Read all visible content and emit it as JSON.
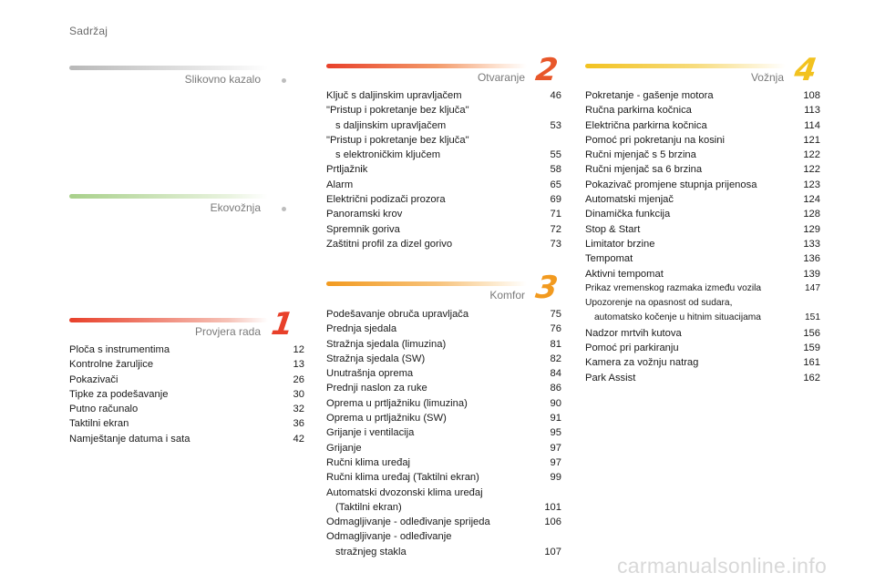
{
  "page_title": "Sadržaj",
  "sections": {
    "slikovno": {
      "label": "Slikovno kazalo"
    },
    "ekovoznja": {
      "label": "Ekovožnja"
    },
    "provjera": {
      "label": "Provjera rada",
      "number": "1",
      "color": "#e8402a"
    },
    "otvaranje": {
      "label": "Otvaranje",
      "number": "2",
      "color": "#e8572a"
    },
    "komfor": {
      "label": "Komfor",
      "number": "3",
      "color": "#f29a1f"
    },
    "voznja": {
      "label": "Vožnja",
      "number": "4",
      "color": "#f2c21f"
    }
  },
  "provjera_items": [
    {
      "title": "Ploča s instrumentima",
      "page": "12"
    },
    {
      "title": "Kontrolne žaruljice",
      "page": "13"
    },
    {
      "title": "Pokazivači",
      "page": "26"
    },
    {
      "title": "Tipke za podešavanje",
      "page": "30"
    },
    {
      "title": "Putno računalo",
      "page": "32"
    },
    {
      "title": "Taktilni ekran",
      "page": "36"
    },
    {
      "title": "Namještanje datuma i sata",
      "page": "42"
    }
  ],
  "otvaranje_items": [
    {
      "title": "Ključ s daljinskim upravljačem",
      "page": "46"
    },
    {
      "title": "\"Pristup i pokretanje bez ključa\"",
      "title2": "s daljinskim upravljačem",
      "page": "53"
    },
    {
      "title": "\"Pristup i pokretanje bez ključa\"",
      "title2": "s elektroničkim ključem",
      "page": "55"
    },
    {
      "title": "Prtljažnik",
      "page": "58"
    },
    {
      "title": "Alarm",
      "page": "65"
    },
    {
      "title": "Električni podizači prozora",
      "page": "69"
    },
    {
      "title": "Panoramski krov",
      "page": "71"
    },
    {
      "title": "Spremnik goriva",
      "page": "72"
    },
    {
      "title": "Zaštitni profil za dizel gorivo",
      "page": "73"
    }
  ],
  "komfor_items": [
    {
      "title": "Podešavanje obruča upravljača",
      "page": "75"
    },
    {
      "title": "Prednja sjedala",
      "page": "76"
    },
    {
      "title": "Stražnja sjedala (limuzina)",
      "page": "81"
    },
    {
      "title": "Stražnja sjedala (SW)",
      "page": "82"
    },
    {
      "title": "Unutrašnja oprema",
      "page": "84"
    },
    {
      "title": "Prednji naslon za ruke",
      "page": "86"
    },
    {
      "title": "Oprema u prtljažniku (limuzina)",
      "page": "90"
    },
    {
      "title": "Oprema u prtljažniku (SW)",
      "page": "91"
    },
    {
      "title": "Grijanje i ventilacija",
      "page": "95"
    },
    {
      "title": "Grijanje",
      "page": "97"
    },
    {
      "title": "Ručni klima uređaj",
      "page": "97"
    },
    {
      "title": "Ručni klima uređaj (Taktilni ekran)",
      "page": "99"
    },
    {
      "title": "Automatski dvozonski klima uređaj",
      "title2": "(Taktilni ekran)",
      "page": "101"
    },
    {
      "title": "Odmagljivanje - odleđivanje sprijeda",
      "page": "106"
    },
    {
      "title": "Odmagljivanje - odleđivanje",
      "title2": "stražnjeg stakla",
      "page": "107"
    }
  ],
  "voznja_items": [
    {
      "title": "Pokretanje - gašenje motora",
      "page": "108"
    },
    {
      "title": "Ručna parkirna kočnica",
      "page": "113"
    },
    {
      "title": "Električna parkirna kočnica",
      "page": "114"
    },
    {
      "title": "Pomoć pri pokretanju na kosini",
      "page": "121"
    },
    {
      "title": "Ručni mjenjač s 5 brzina",
      "page": "122"
    },
    {
      "title": "Ručni mjenjač sa 6 brzina",
      "page": "122"
    },
    {
      "title": "Pokazivač promjene stupnja prijenosa",
      "page": "123"
    },
    {
      "title": "Automatski mjenjač",
      "page": "124"
    },
    {
      "title": "Dinamička funkcija",
      "page": "128"
    },
    {
      "title": "Stop & Start",
      "page": "129"
    },
    {
      "title": "Limitator brzine",
      "page": "133"
    },
    {
      "title": "Tempomat",
      "page": "136"
    },
    {
      "title": "Aktivni tempomat",
      "page": "139"
    },
    {
      "title": "Prikaz vremenskog razmaka između vozila",
      "page": "147",
      "small": true
    },
    {
      "title": "Upozorenje na opasnost od sudara,",
      "title2": "automatsko kočenje u hitnim situacijama",
      "page": "151",
      "small": true
    },
    {
      "title": "Nadzor mrtvih kutova",
      "page": "156"
    },
    {
      "title": "Pomoć pri parkiranju",
      "page": "159"
    },
    {
      "title": "Kamera za vožnju natrag",
      "page": "161"
    },
    {
      "title": "Park Assist",
      "page": "162"
    }
  ],
  "watermark": "carmanualsonline.info"
}
